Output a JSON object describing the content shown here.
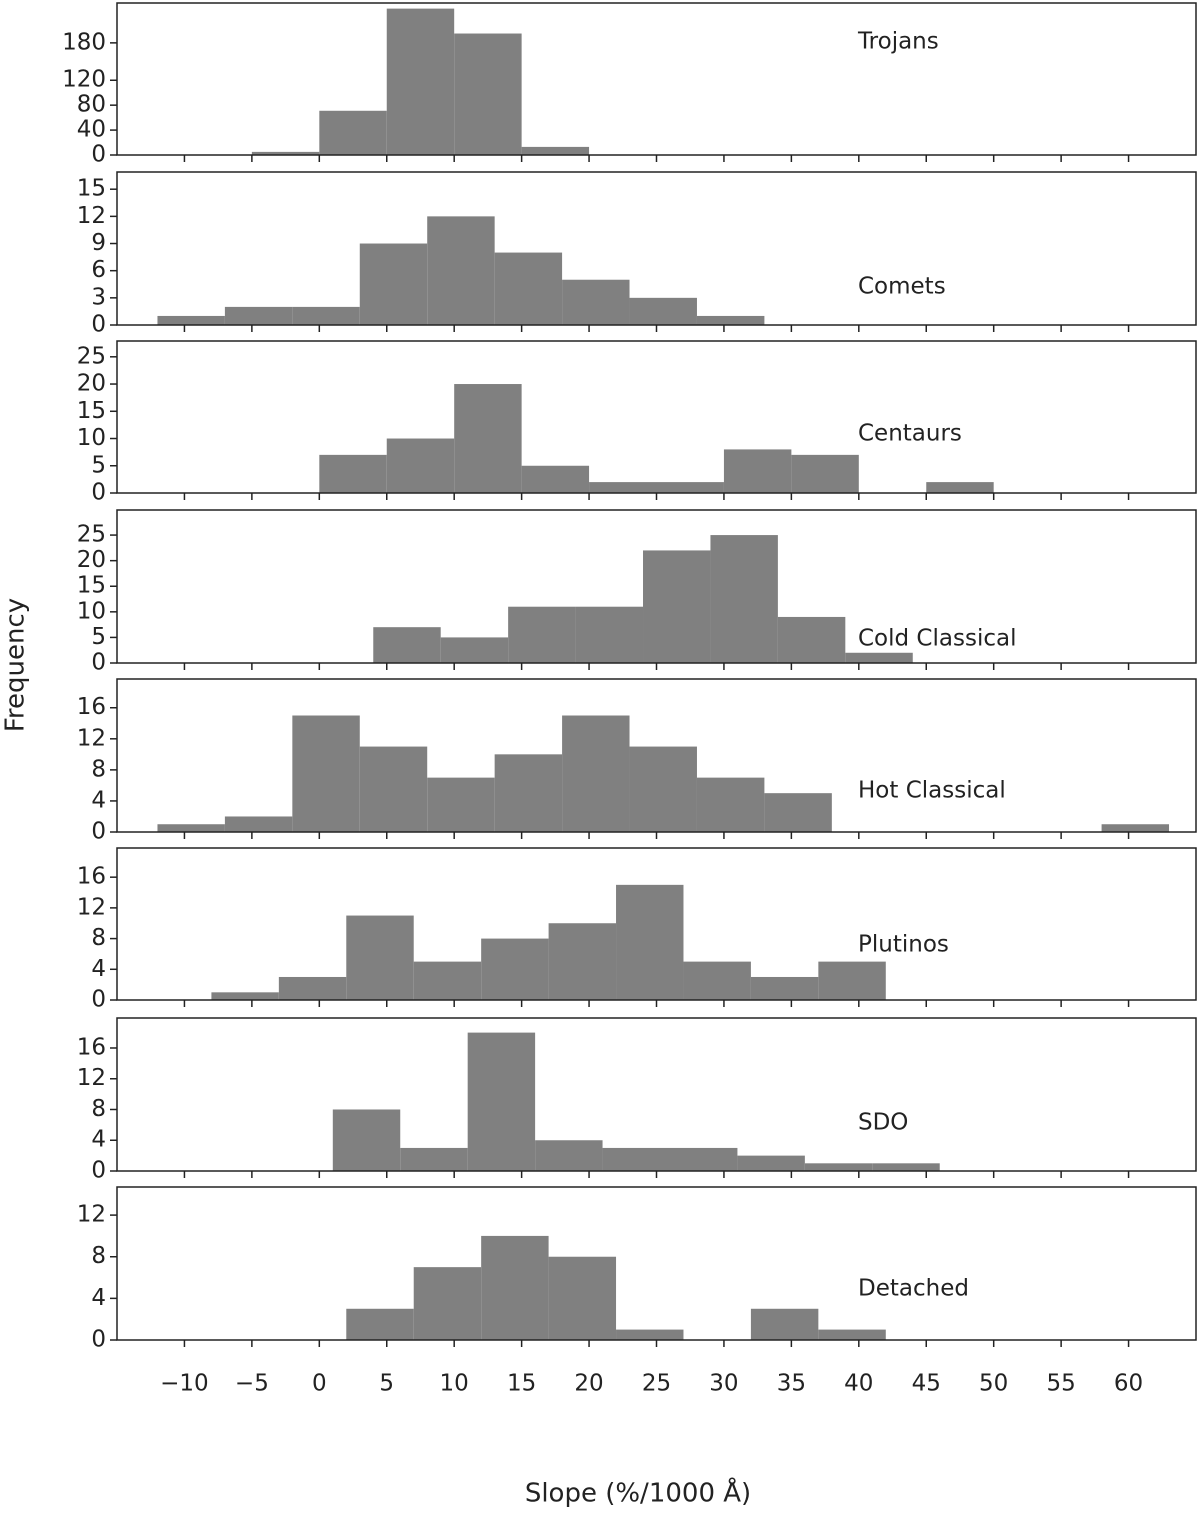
{
  "ylabel": "Frequency",
  "chart_data": [
    {
      "type": "histogram",
      "label": "Trojans",
      "bins": [
        -5,
        0,
        5,
        10,
        15,
        20
      ],
      "values": [
        5,
        71,
        235,
        195,
        13
      ],
      "color": "#808080",
      "xlim": [
        -15,
        65
      ],
      "ylim": [
        0,
        244
      ],
      "yticks": [
        0,
        40,
        80,
        120,
        180
      ]
    },
    {
      "type": "histogram",
      "label": "Comets",
      "bins": [
        -12,
        -7,
        -2,
        3,
        8,
        13,
        18,
        23,
        28,
        33
      ],
      "values": [
        1,
        2,
        2,
        9,
        12,
        8,
        5,
        3,
        1
      ],
      "color": "#808080",
      "xlim": [
        -15,
        65
      ],
      "ylim": [
        0,
        16.9
      ],
      "yticks": [
        0,
        3,
        6,
        9,
        12,
        15
      ]
    },
    {
      "type": "histogram",
      "label": "Centaurs",
      "bins": [
        0,
        5,
        10,
        15,
        20,
        25,
        30,
        35,
        40,
        45,
        50
      ],
      "values": [
        7,
        10,
        20,
        5,
        2,
        2,
        8,
        7,
        0,
        2
      ],
      "color": "#808080",
      "xlim": [
        -15,
        65
      ],
      "ylim": [
        0,
        27.9
      ],
      "yticks": [
        0,
        5,
        10,
        15,
        20,
        25
      ]
    },
    {
      "type": "histogram",
      "label": "Cold Classical",
      "bins": [
        4,
        9,
        14,
        19,
        24,
        29,
        34,
        39,
        44
      ],
      "values": [
        7,
        5,
        11,
        11,
        22,
        25,
        9,
        2
      ],
      "color": "#808080",
      "xlim": [
        -15,
        65
      ],
      "ylim": [
        0,
        29.9
      ],
      "yticks": [
        0,
        5,
        10,
        15,
        20,
        25
      ]
    },
    {
      "type": "histogram",
      "label": "Hot Classical",
      "bins": [
        -12,
        -7,
        -2,
        3,
        8,
        13,
        18,
        23,
        28,
        33,
        38,
        43,
        48,
        53,
        58,
        63
      ],
      "values": [
        1,
        2,
        15,
        11,
        7,
        10,
        15,
        11,
        7,
        5,
        0,
        0,
        0,
        0,
        1
      ],
      "color": "#808080",
      "xlim": [
        -15,
        65
      ],
      "ylim": [
        0,
        19.7
      ],
      "yticks": [
        0,
        4,
        8,
        12,
        16
      ]
    },
    {
      "type": "histogram",
      "label": "Plutinos",
      "bins": [
        -8,
        -3,
        2,
        7,
        12,
        17,
        22,
        27,
        32,
        37,
        42
      ],
      "values": [
        1,
        3,
        11,
        5,
        8,
        10,
        15,
        5,
        3,
        5
      ],
      "color": "#808080",
      "xlim": [
        -15,
        65
      ],
      "ylim": [
        0,
        19.8
      ],
      "yticks": [
        0,
        4,
        8,
        12,
        16
      ]
    },
    {
      "type": "histogram",
      "label": "SDO",
      "bins": [
        1,
        6,
        11,
        16,
        21,
        26,
        31,
        36,
        41,
        46
      ],
      "values": [
        8,
        3,
        18,
        4,
        3,
        3,
        2,
        1,
        1
      ],
      "color": "#808080",
      "xlim": [
        -15,
        65
      ],
      "ylim": [
        0,
        19.9
      ],
      "yticks": [
        0,
        4,
        8,
        12,
        16
      ]
    },
    {
      "type": "histogram",
      "label": "Detached",
      "bins": [
        2,
        7,
        12,
        17,
        22,
        27,
        32,
        37,
        42
      ],
      "values": [
        3,
        7,
        10,
        8,
        1,
        0,
        3,
        1
      ],
      "color": "#808080",
      "xlim": [
        -15,
        65
      ],
      "ylim": [
        0,
        14.7
      ],
      "yticks": [
        0,
        4,
        8,
        12
      ],
      "xlabel": "Slope (%/1000 Å)",
      "xticks": [
        {
          "value": -10,
          "label": "−10"
        },
        {
          "value": -5,
          "label": "−5"
        },
        0,
        5,
        10,
        15,
        20,
        25,
        30,
        35,
        40,
        45,
        50,
        55,
        60
      ]
    }
  ]
}
